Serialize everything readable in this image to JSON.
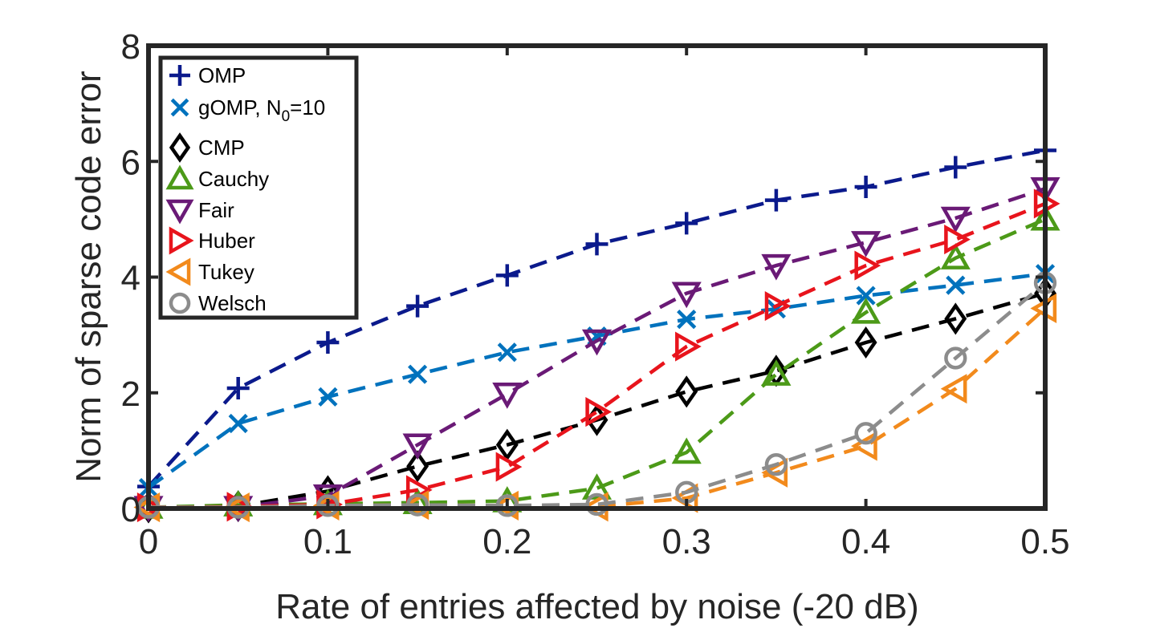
{
  "chart_data": {
    "type": "line",
    "title": "",
    "xlabel": "Rate of entries affected by noise (-20 dB)",
    "ylabel": "Norm of sparse code error",
    "xlim": [
      0,
      0.5
    ],
    "ylim": [
      0,
      8
    ],
    "x_ticks": [
      "0",
      "0.1",
      "0.2",
      "0.3",
      "0.4",
      "0.5"
    ],
    "y_ticks": [
      "0",
      "2",
      "4",
      "6",
      "8"
    ],
    "grid": false,
    "legend_position": "top-left",
    "x": [
      0,
      0.05,
      0.1,
      0.15,
      0.2,
      0.25,
      0.3,
      0.35,
      0.4,
      0.45,
      0.5
    ],
    "series": [
      {
        "name": "OMP",
        "color": "#0b1a8c",
        "marker": "plus",
        "values": [
          0.38,
          2.08,
          2.87,
          3.5,
          4.03,
          4.57,
          4.93,
          5.33,
          5.56,
          5.9,
          6.19
        ]
      },
      {
        "name": "gOMP, N0=10",
        "name_main": "gOMP, N",
        "name_sub": "0",
        "name_tail": "=10",
        "color": "#0072bd",
        "marker": "x",
        "values": [
          0.36,
          1.47,
          1.93,
          2.32,
          2.7,
          2.98,
          3.27,
          3.45,
          3.68,
          3.86,
          4.06
        ]
      },
      {
        "name": "CMP",
        "color": "#000000",
        "marker": "diamond",
        "values": [
          0.02,
          0.04,
          0.3,
          0.73,
          1.1,
          1.53,
          2.02,
          2.38,
          2.87,
          3.28,
          3.72
        ]
      },
      {
        "name": "Cauchy",
        "color": "#4c9a18",
        "marker": "triangle-up",
        "values": [
          0.02,
          0.06,
          0.08,
          0.1,
          0.13,
          0.35,
          0.97,
          2.32,
          3.39,
          4.33,
          5.0
        ]
      },
      {
        "name": "Fair",
        "color": "#6a1a76",
        "marker": "triangle-down",
        "values": [
          0.02,
          0.02,
          0.22,
          1.1,
          1.98,
          2.9,
          3.72,
          4.2,
          4.6,
          5.02,
          5.53
        ]
      },
      {
        "name": "Huber",
        "color": "#e8141c",
        "marker": "triangle-right",
        "values": [
          0.02,
          0.03,
          0.07,
          0.32,
          0.72,
          1.67,
          2.8,
          3.5,
          4.2,
          4.65,
          5.27
        ]
      },
      {
        "name": "Tukey",
        "color": "#f28a1c",
        "marker": "triangle-left",
        "values": [
          0.02,
          0.02,
          0.05,
          0.06,
          0.05,
          0.03,
          0.18,
          0.62,
          1.08,
          2.07,
          3.46
        ]
      },
      {
        "name": "Welsch",
        "color": "#8c8c8c",
        "marker": "circle",
        "values": [
          0.02,
          0.02,
          0.05,
          0.06,
          0.05,
          0.07,
          0.28,
          0.76,
          1.3,
          2.6,
          3.9
        ]
      }
    ]
  }
}
